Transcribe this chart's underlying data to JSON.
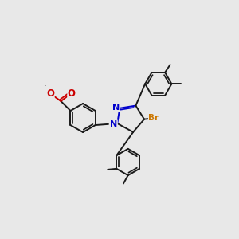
{
  "bg_color": "#e8e8e8",
  "bond_color": "#1a1a1a",
  "N_color": "#0000cc",
  "O_color": "#cc0000",
  "Br_color": "#cc7700",
  "line_width": 1.4,
  "figsize": [
    3.0,
    3.0
  ],
  "dpi": 100,
  "xlim": [
    0,
    10
  ],
  "ylim": [
    0,
    10
  ]
}
